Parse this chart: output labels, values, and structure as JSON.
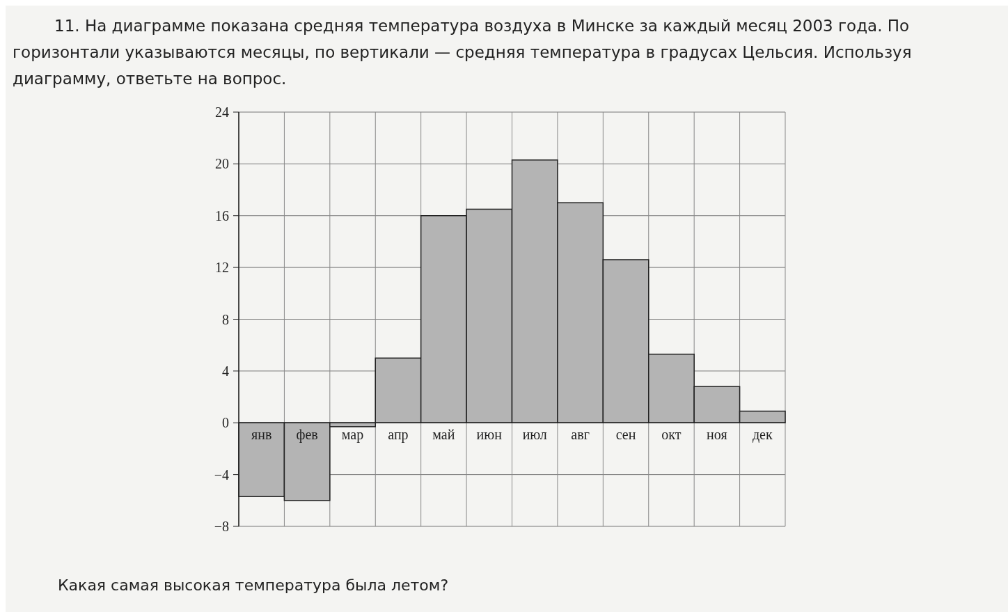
{
  "chart_data": {
    "type": "bar",
    "title": "11. На диаграмме показана средняя температура воздуха в Минске за каждый месяц 2003 года. По горизонтали указываются месяцы, по вертикали — средняя температура в градусах Цельсия. Используя диаграмму, ответьте на вопрос.",
    "categories": [
      "янв",
      "фев",
      "мар",
      "апр",
      "май",
      "июн",
      "июл",
      "авг",
      "сен",
      "окт",
      "ноя",
      "дек"
    ],
    "values": [
      -5.7,
      -6,
      -0.3,
      5,
      16,
      16.5,
      20.3,
      17,
      12.6,
      5.3,
      2.8,
      0.9
    ],
    "color": "#b4b4b4",
    "ylim": [
      -8,
      24
    ],
    "yticks": [
      {
        "value": -8,
        "label": "−8"
      },
      {
        "value": -4,
        "label": "−4"
      },
      0,
      4,
      8,
      12,
      16,
      20,
      24
    ],
    "grid": true,
    "annotations": [
      "Какая самая высокая температура была летом?"
    ]
  }
}
